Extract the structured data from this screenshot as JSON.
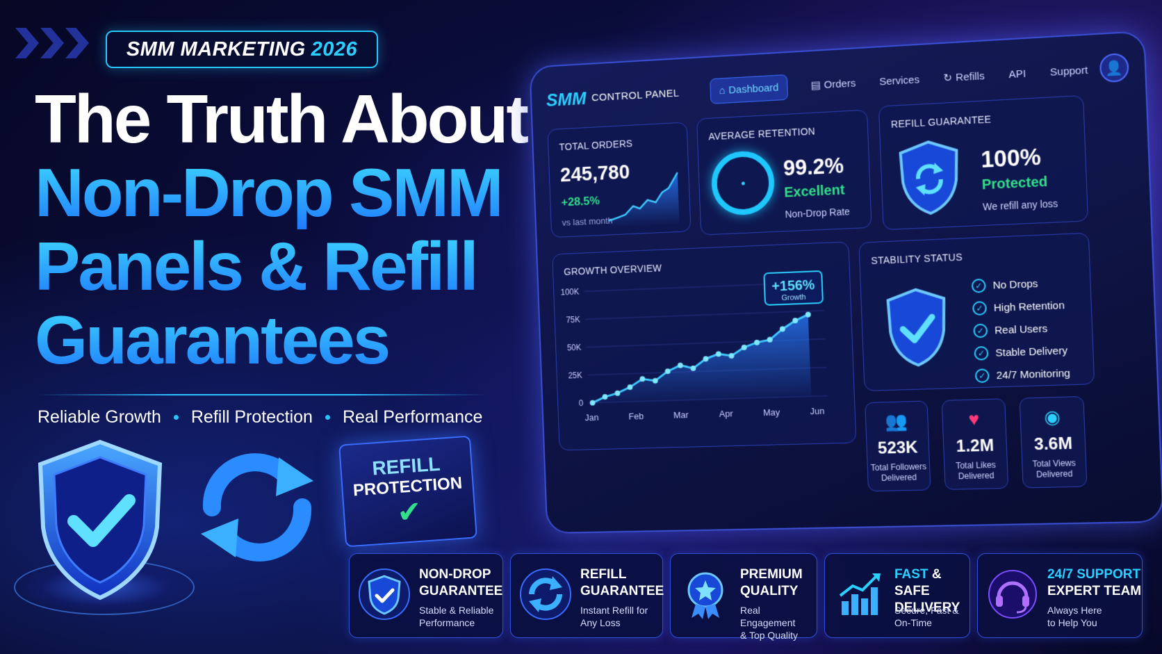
{
  "badge": {
    "label": "SMM MARKETING",
    "year": "2026"
  },
  "headline": {
    "line1": "The Truth About",
    "line2": "Non-Drop SMM",
    "line3": "Panels & Refill",
    "line4": "Guarantees"
  },
  "taglines": [
    "Reliable Growth",
    "Refill Protection",
    "Real Performance"
  ],
  "refill_box": {
    "line1": "REFILL",
    "line2": "PROTECTION"
  },
  "dashboard": {
    "logo": "SMM",
    "logo_sub": "CONTROL PANEL",
    "nav": [
      "Dashboard",
      "Orders",
      "Services",
      "Refills",
      "API",
      "Support"
    ],
    "total_orders": {
      "title": "TOTAL ORDERS",
      "value": "245,780",
      "change": "+28.5%",
      "sub": "vs last month"
    },
    "retention": {
      "title": "AVERAGE RETENTION",
      "value": "99.2%",
      "quality": "Excellent",
      "sub": "Non-Drop Rate"
    },
    "refill": {
      "title": "REFILL GUARANTEE",
      "value": "100%",
      "status": "Protected",
      "sub": "We refill any loss"
    },
    "growth": {
      "title": "GROWTH OVERVIEW",
      "callout_value": "+156%",
      "callout_label": "Growth"
    },
    "stability": {
      "title": "STABILITY STATUS",
      "items": [
        "No Drops",
        "High Retention",
        "Real Users",
        "Stable Delivery",
        "24/7 Monitoring"
      ]
    },
    "stats": [
      {
        "icon": "users-icon",
        "value": "523K",
        "label1": "Total Followers",
        "label2": "Delivered"
      },
      {
        "icon": "heart-icon",
        "value": "1.2M",
        "label1": "Total Likes",
        "label2": "Delivered"
      },
      {
        "icon": "eye-icon",
        "value": "3.6M",
        "label1": "Total Views",
        "label2": "Delivered"
      }
    ]
  },
  "chart_data": {
    "type": "line",
    "title": "GROWTH OVERVIEW",
    "x_ticks": [
      "Jan",
      "Feb",
      "Mar",
      "Apr",
      "May",
      "Jun"
    ],
    "y_ticks": [
      "0",
      "25K",
      "50K",
      "75K",
      "100K"
    ],
    "ylim": [
      0,
      100000
    ],
    "series": [
      {
        "values": [
          0,
          5000,
          8000,
          13000,
          20000,
          18000,
          26000,
          31000,
          28000,
          36000,
          40000,
          38000,
          45000,
          49000,
          51000,
          60000,
          67000,
          72000
        ]
      }
    ],
    "annotation": "+156% Growth"
  },
  "features": [
    {
      "icon": "shield-check-icon",
      "title1": "NON-DROP",
      "title2": "GUARANTEE",
      "desc1": "Stable & Reliable",
      "desc2": "Performance"
    },
    {
      "icon": "refresh-icon",
      "title1": "REFILL",
      "title2": "GUARANTEE",
      "desc1": "Instant Refill for",
      "desc2": "Any Loss"
    },
    {
      "icon": "award-icon",
      "title1": "PREMIUM",
      "title2": "QUALITY",
      "desc1": "Real Engagement",
      "desc2": "& Top Quality"
    },
    {
      "icon": "bar-chart-icon",
      "title1a": "FAST",
      "title1b": "& SAFE",
      "title2": "DELIVERY",
      "desc1": "Secure, Fast &",
      "desc2": "On-Time"
    },
    {
      "icon": "headset-icon",
      "title1": "24/7 SUPPORT",
      "title2": "EXPERT TEAM",
      "desc1": "Always Here",
      "desc2": "to Help You"
    }
  ],
  "colors": {
    "accent": "#2bd0ff",
    "success": "#31e08a",
    "primary": "#1f7bff",
    "background": "#0a0c3a"
  }
}
